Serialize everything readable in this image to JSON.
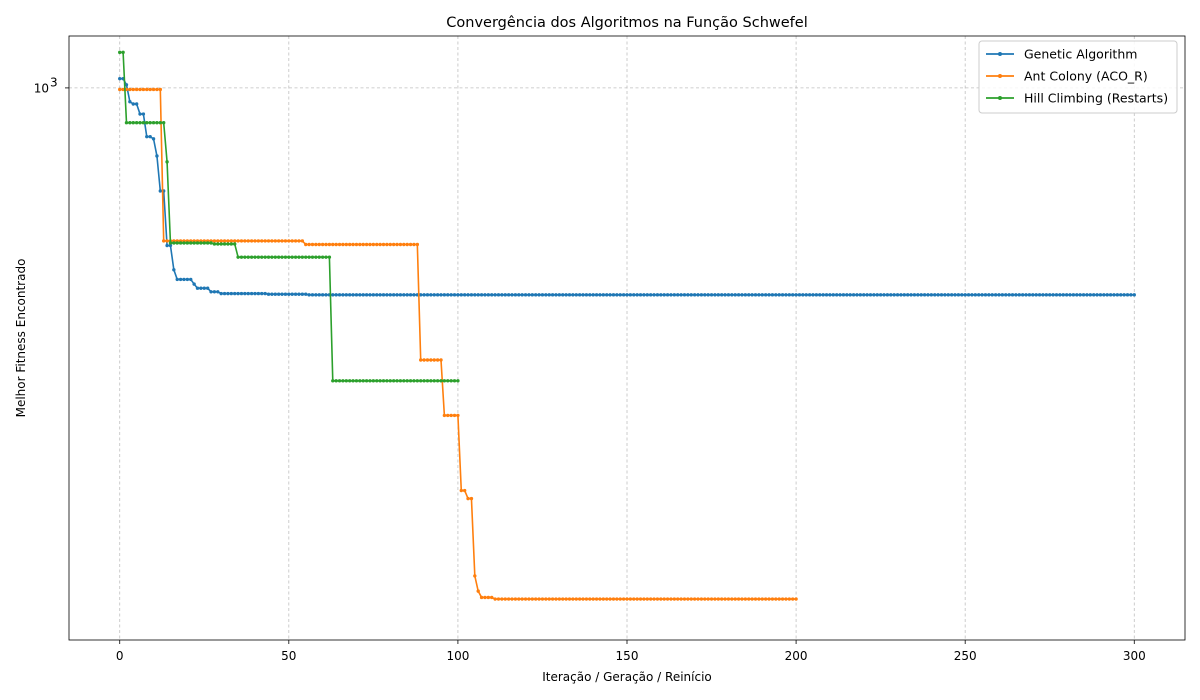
{
  "chart_data": {
    "type": "line",
    "title": "Convergência dos Algoritmos na Função Schwefel",
    "xlabel": "Iteração / Geração / Reinício",
    "ylabel": "Melhor Fitness Encontrado",
    "xlim": [
      -15,
      315
    ],
    "ylim": [
      172,
      1180
    ],
    "yscale": "log",
    "x_ticks": [
      0,
      50,
      100,
      150,
      200,
      250,
      300
    ],
    "y_ticks": [
      {
        "value": 1000,
        "label": "10",
        "exponent": "3"
      }
    ],
    "grid": true,
    "legend_position": "top-right",
    "series": [
      {
        "name": "Genetic Algorithm",
        "color": "#1f77b4",
        "x_max": 300,
        "steps": [
          [
            0,
            1030
          ],
          [
            2,
            1010
          ],
          [
            3,
            957
          ],
          [
            4,
            950
          ],
          [
            6,
            920
          ],
          [
            8,
            856
          ],
          [
            10,
            850
          ],
          [
            11,
            805
          ],
          [
            12,
            720
          ],
          [
            14,
            605
          ],
          [
            16,
            560
          ],
          [
            17,
            543
          ],
          [
            22,
            535
          ],
          [
            23,
            528
          ],
          [
            27,
            522
          ],
          [
            30,
            519
          ],
          [
            44,
            518
          ],
          [
            56,
            517
          ],
          [
            300,
            517
          ]
        ]
      },
      {
        "name": "Ant Colony (ACO_R)",
        "color": "#ff7f0e",
        "x_max": 200,
        "steps": [
          [
            0,
            995
          ],
          [
            13,
            614
          ],
          [
            55,
            607
          ],
          [
            89,
            420
          ],
          [
            96,
            352
          ],
          [
            101,
            277
          ],
          [
            103,
            270
          ],
          [
            105,
            211
          ],
          [
            106,
            201
          ],
          [
            107,
            197
          ],
          [
            111,
            196
          ],
          [
            200,
            196
          ]
        ]
      },
      {
        "name": "Hill Climbing (Restarts)",
        "color": "#2ca02c",
        "x_max": 100,
        "steps": [
          [
            0,
            1120
          ],
          [
            2,
            895
          ],
          [
            14,
            790
          ],
          [
            15,
            610
          ],
          [
            28,
            608
          ],
          [
            35,
            583
          ],
          [
            63,
            393
          ],
          [
            100,
            393
          ]
        ]
      }
    ]
  }
}
